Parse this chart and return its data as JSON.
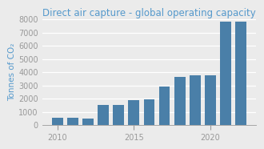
{
  "title": "Direct air capture - global operating capacity",
  "ylabel": "Tonnes of CO₂",
  "years": [
    2010,
    2011,
    2012,
    2013,
    2014,
    2015,
    2016,
    2017,
    2018,
    2019,
    2020,
    2021,
    2022
  ],
  "values": [
    550,
    550,
    500,
    1500,
    1500,
    1900,
    1950,
    2900,
    3650,
    3750,
    3800,
    7800,
    7800
  ],
  "bar_color": "#4a7fa8",
  "title_color": "#5599cc",
  "ylabel_color": "#5599cc",
  "tick_color": "#999999",
  "background_color": "#ebebeb",
  "plot_background": "#ebebeb",
  "ylim": [
    0,
    8000
  ],
  "yticks": [
    0,
    1000,
    2000,
    3000,
    4000,
    5000,
    6000,
    7000,
    8000
  ],
  "xticks": [
    2010,
    2015,
    2020
  ],
  "grid_color": "#ffffff",
  "title_fontsize": 8.5,
  "axis_fontsize": 7.5,
  "tick_fontsize": 7.0
}
